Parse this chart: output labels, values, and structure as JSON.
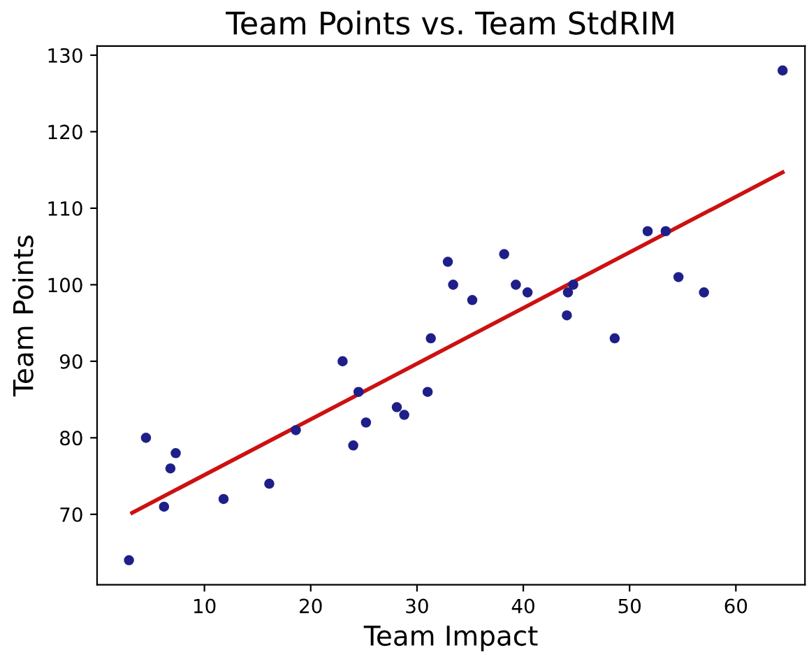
{
  "chart_data": {
    "type": "scatter",
    "title": "Team Points vs. Team StdRIM",
    "xlabel": "Team Impact",
    "ylabel": "Team Points",
    "xlim": [
      -0.1,
      66.5
    ],
    "ylim": [
      60.8,
      131.2
    ],
    "xticks": [
      10,
      20,
      30,
      40,
      50,
      60
    ],
    "yticks": [
      70,
      80,
      90,
      100,
      110,
      120,
      130
    ],
    "grid": false,
    "legend": false,
    "series": [
      {
        "marker": "circle",
        "color": "#1f1f8a",
        "x": [
          2.9,
          4.5,
          6.2,
          6.8,
          7.3,
          11.8,
          16.1,
          18.6,
          23.0,
          24.0,
          24.5,
          25.2,
          28.1,
          28.8,
          31.0,
          31.3,
          32.9,
          33.4,
          35.2,
          38.2,
          39.3,
          40.4,
          44.1,
          44.2,
          44.7,
          48.6,
          51.7,
          53.4,
          54.6,
          57.0,
          64.4
        ],
        "values": [
          64,
          80,
          71,
          76,
          78,
          72,
          74,
          81,
          90,
          79,
          86,
          82,
          84,
          83,
          86,
          93,
          103,
          100,
          98,
          104,
          100,
          99,
          96,
          99,
          100,
          93,
          107,
          107,
          101,
          99,
          128
        ]
      },
      {
        "type": "line",
        "color": "#cc1111",
        "x": [
          3.2,
          64.4
        ],
        "values": [
          70.2,
          114.7
        ]
      }
    ]
  }
}
